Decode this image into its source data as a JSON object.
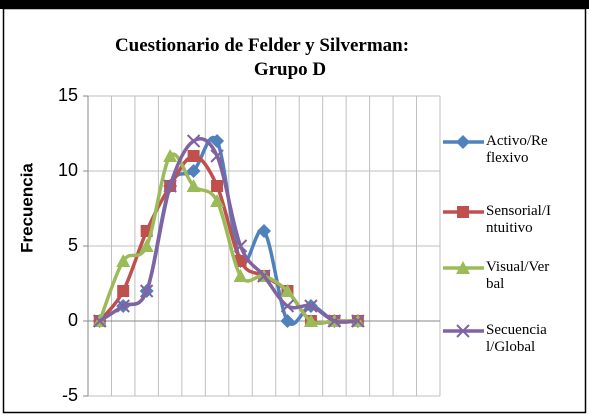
{
  "chart_data": {
    "type": "line",
    "title": "Cuestionario de Felder y Silverman: Grupo D",
    "y_label": "Frecuencia",
    "categories": [
      null,
      null,
      null,
      null,
      null,
      null,
      null,
      null,
      null,
      null,
      null,
      null,
      null,
      null,
      null
    ],
    "series": [
      {
        "name": "Activo/Reflexivo",
        "color": "#4f81bd",
        "marker": "diamond",
        "values": [
          0,
          1,
          2,
          9,
          10,
          12,
          4,
          6,
          0,
          1,
          0,
          0,
          null,
          null,
          null
        ]
      },
      {
        "name": "Sensorial/Intuitivo",
        "color": "#c0504d",
        "marker": "square",
        "values": [
          0,
          2,
          6,
          9,
          11,
          9,
          4,
          3,
          2,
          0,
          0,
          0,
          null,
          null,
          null
        ]
      },
      {
        "name": "Visual/Verbal",
        "color": "#9bbb59",
        "marker": "triangle",
        "values": [
          0,
          4,
          5,
          11,
          9,
          8,
          3,
          3,
          2,
          0,
          0,
          0,
          null,
          null,
          null
        ]
      },
      {
        "name": "Secuencial/Global",
        "color": "#8064a2",
        "marker": "x",
        "values": [
          0,
          1,
          2,
          9,
          12,
          11,
          5,
          3,
          1,
          1,
          0,
          0,
          null,
          null,
          null
        ]
      }
    ],
    "ylim": [
      -5,
      15
    ],
    "yticks": [
      -5,
      0,
      5,
      10,
      15
    ],
    "grid": true,
    "smooth": true,
    "legend": "right"
  }
}
